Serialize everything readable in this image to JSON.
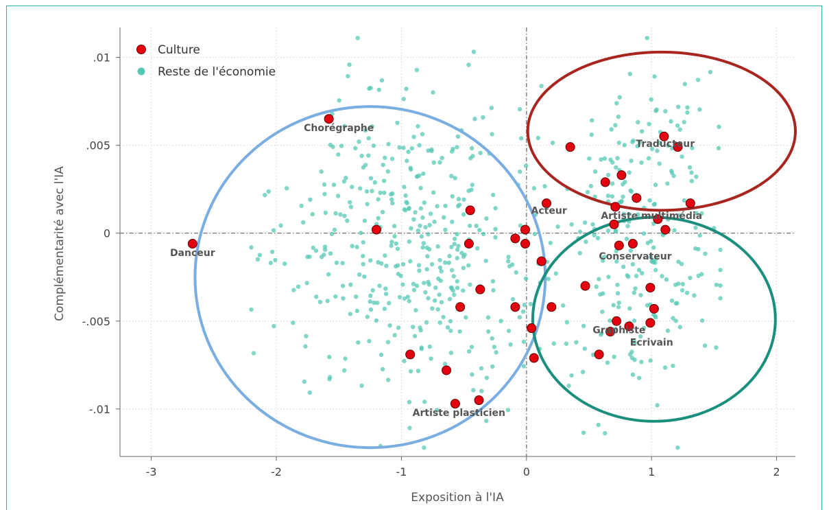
{
  "chart_data": {
    "type": "scatter",
    "title": "",
    "xlabel": "Exposition à l'IA",
    "ylabel": "Complémentarité avec l'IA",
    "xlim": [
      -3.25,
      2.15
    ],
    "ylim": [
      -0.0127,
      0.0117
    ],
    "x_ticks": [
      {
        "value": -3,
        "label": "-3"
      },
      {
        "value": -2,
        "label": "-2"
      },
      {
        "value": -1,
        "label": "-1"
      },
      {
        "value": 0,
        "label": "0"
      },
      {
        "value": 1,
        "label": "1"
      },
      {
        "value": 2,
        "label": "2"
      }
    ],
    "y_ticks": [
      {
        "value": 0.01,
        "label": ".01"
      },
      {
        "value": 0.005,
        "label": ".005"
      },
      {
        "value": 0,
        "label": "0"
      },
      {
        "value": -0.005,
        "label": "-.005"
      },
      {
        "value": -0.01,
        "label": "-.01"
      }
    ],
    "grid": "dotted",
    "reference_lines": {
      "x": 0,
      "y": 0
    },
    "legend": {
      "position": "top-left",
      "entries": [
        {
          "label": "Culture",
          "color": "#e3000f"
        },
        {
          "label": "Reste de l'économie",
          "color": "#55c8b4"
        }
      ]
    },
    "series": [
      {
        "name": "Culture",
        "color": "#e3000f",
        "points": [
          [
            -2.67,
            -0.0006
          ],
          [
            -1.58,
            0.0065
          ],
          [
            -1.2,
            0.0002
          ],
          [
            -0.45,
            0.0013
          ],
          [
            -0.46,
            -0.0006
          ],
          [
            -0.09,
            -0.0003
          ],
          [
            -0.01,
            0.0002
          ],
          [
            -0.01,
            -0.0006
          ],
          [
            0.12,
            -0.0016
          ],
          [
            0.16,
            0.0017
          ],
          [
            -0.37,
            -0.0032
          ],
          [
            -0.53,
            -0.0042
          ],
          [
            -0.09,
            -0.0042
          ],
          [
            0.2,
            -0.0042
          ],
          [
            0.04,
            -0.0054
          ],
          [
            0.06,
            -0.0071
          ],
          [
            -0.93,
            -0.0069
          ],
          [
            -0.64,
            -0.0078
          ],
          [
            -0.57,
            -0.0097
          ],
          [
            -0.38,
            -0.0095
          ],
          [
            0.35,
            0.0049
          ],
          [
            0.63,
            0.0029
          ],
          [
            0.76,
            0.0033
          ],
          [
            0.88,
            0.002
          ],
          [
            0.71,
            0.0015
          ],
          [
            1.1,
            0.0055
          ],
          [
            1.21,
            0.0049
          ],
          [
            1.31,
            0.0017
          ],
          [
            0.7,
            0.0005
          ],
          [
            1.05,
            0.0008
          ],
          [
            1.11,
            0.0002
          ],
          [
            0.74,
            -0.0007
          ],
          [
            0.85,
            -0.0006
          ],
          [
            0.47,
            -0.003
          ],
          [
            0.99,
            -0.0031
          ],
          [
            0.72,
            -0.005
          ],
          [
            0.67,
            -0.0056
          ],
          [
            0.82,
            -0.0053
          ],
          [
            0.99,
            -0.0051
          ],
          [
            1.02,
            -0.0043
          ],
          [
            0.58,
            -0.0069
          ]
        ]
      },
      {
        "name": "Reste de l'économie",
        "color": "#55c8b4",
        "n_points": 650
      }
    ],
    "annotations": [
      {
        "text": "Danceur",
        "x": -2.67,
        "y": -0.0013
      },
      {
        "text": "Chorégraphe",
        "x": -1.5,
        "y": 0.0058
      },
      {
        "text": "Acteur",
        "x": 0.18,
        "y": 0.0011
      },
      {
        "text": "Artiste multimédia",
        "x": 1.0,
        "y": 0.0008
      },
      {
        "text": "Traducteur",
        "x": 1.11,
        "y": 0.0049
      },
      {
        "text": "Conservateur",
        "x": 0.87,
        "y": -0.0015
      },
      {
        "text": "Graphiste",
        "x": 0.74,
        "y": -0.0057
      },
      {
        "text": "Ecrivain",
        "x": 1.0,
        "y": -0.0064
      },
      {
        "text": "Artiste plasticien",
        "x": -0.54,
        "y": -0.0104
      }
    ],
    "ellipses": [
      {
        "color": "#7aade0",
        "cx": -1.25,
        "cy": -0.0025,
        "rx": 1.4,
        "ry": 0.0097
      },
      {
        "color": "#a8261f",
        "cx": 1.08,
        "cy": 0.0058,
        "rx": 1.07,
        "ry": 0.0045
      },
      {
        "color": "#1a8f7e",
        "cx": 1.02,
        "cy": -0.0049,
        "rx": 0.97,
        "ry": 0.0058
      }
    ]
  }
}
